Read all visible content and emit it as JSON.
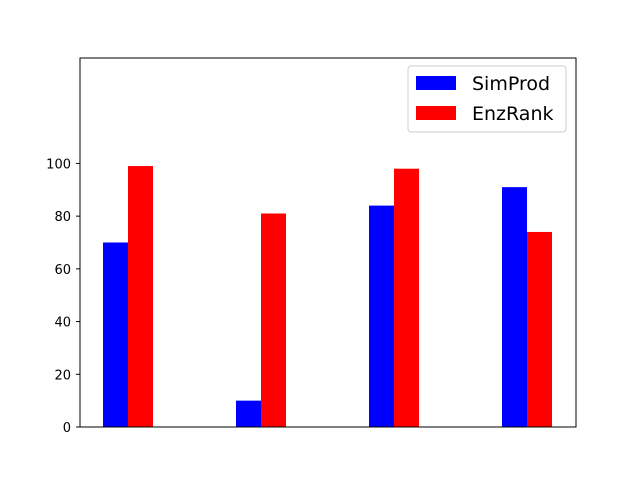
{
  "chart_data": {
    "type": "bar",
    "categories": [
      "",
      "",
      "",
      ""
    ],
    "series": [
      {
        "name": "SimProd",
        "color": "#0000ff",
        "values": [
          70,
          10,
          84,
          91
        ]
      },
      {
        "name": "EnzRank",
        "color": "#ff0000",
        "values": [
          99,
          81,
          98,
          74
        ]
      }
    ],
    "title": "",
    "xlabel": "",
    "ylabel": "",
    "ylim": [
      0,
      140
    ],
    "yticks": [
      "0",
      "20",
      "40",
      "60",
      "80",
      "100"
    ],
    "grid": false,
    "legend_position": "top-right"
  }
}
